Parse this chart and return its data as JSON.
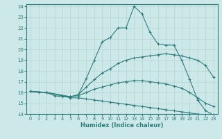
{
  "xlabel": "Humidex (Indice chaleur)",
  "bg_color": "#cde8e8",
  "line_color": "#2e7d7d",
  "xlim": [
    -0.5,
    23.5
  ],
  "ylim": [
    14,
    24.2
  ],
  "yticks": [
    14,
    15,
    16,
    17,
    18,
    19,
    20,
    21,
    22,
    23,
    24
  ],
  "xticks": [
    0,
    1,
    2,
    3,
    4,
    5,
    6,
    7,
    8,
    9,
    10,
    11,
    12,
    13,
    14,
    15,
    16,
    17,
    18,
    19,
    20,
    21,
    22,
    23
  ],
  "line1_x": [
    0,
    1,
    2,
    3,
    4,
    5,
    6,
    7,
    8,
    9,
    10,
    11,
    12,
    13,
    14,
    15,
    16,
    17,
    18,
    19,
    20,
    21,
    22,
    23
  ],
  "line1_y": [
    16.1,
    16.0,
    16.0,
    15.7,
    15.6,
    15.6,
    15.8,
    17.3,
    19.0,
    20.7,
    21.1,
    22.0,
    22.0,
    24.0,
    23.3,
    21.6,
    20.5,
    20.4,
    20.4,
    19.0,
    17.2,
    15.3,
    14.3,
    13.9
  ],
  "line2_x": [
    0,
    2,
    5,
    6,
    7,
    8,
    9,
    10,
    11,
    12,
    13,
    14,
    15,
    16,
    17,
    18,
    19,
    20,
    21,
    22,
    23
  ],
  "line2_y": [
    16.1,
    16.0,
    15.6,
    15.8,
    16.5,
    17.2,
    17.8,
    18.2,
    18.7,
    19.0,
    19.2,
    19.3,
    19.4,
    19.5,
    19.6,
    19.5,
    19.4,
    19.2,
    19.0,
    18.5,
    17.4
  ],
  "line3_x": [
    0,
    2,
    5,
    6,
    7,
    8,
    9,
    10,
    11,
    12,
    13,
    14,
    15,
    16,
    17,
    18,
    19,
    20,
    21,
    22,
    23
  ],
  "line3_y": [
    16.1,
    16.0,
    15.6,
    15.7,
    16.0,
    16.3,
    16.5,
    16.7,
    16.9,
    17.0,
    17.1,
    17.1,
    17.0,
    16.9,
    16.8,
    16.6,
    16.4,
    16.0,
    15.5,
    15.0,
    14.7
  ],
  "line4_x": [
    0,
    2,
    5,
    6,
    7,
    8,
    9,
    10,
    11,
    12,
    13,
    14,
    15,
    16,
    17,
    18,
    19,
    20,
    21,
    22,
    23
  ],
  "line4_y": [
    16.1,
    16.0,
    15.5,
    15.5,
    15.4,
    15.3,
    15.2,
    15.1,
    15.0,
    14.9,
    14.8,
    14.7,
    14.6,
    14.5,
    14.4,
    14.3,
    14.2,
    14.1,
    14.0,
    13.9,
    13.85
  ]
}
